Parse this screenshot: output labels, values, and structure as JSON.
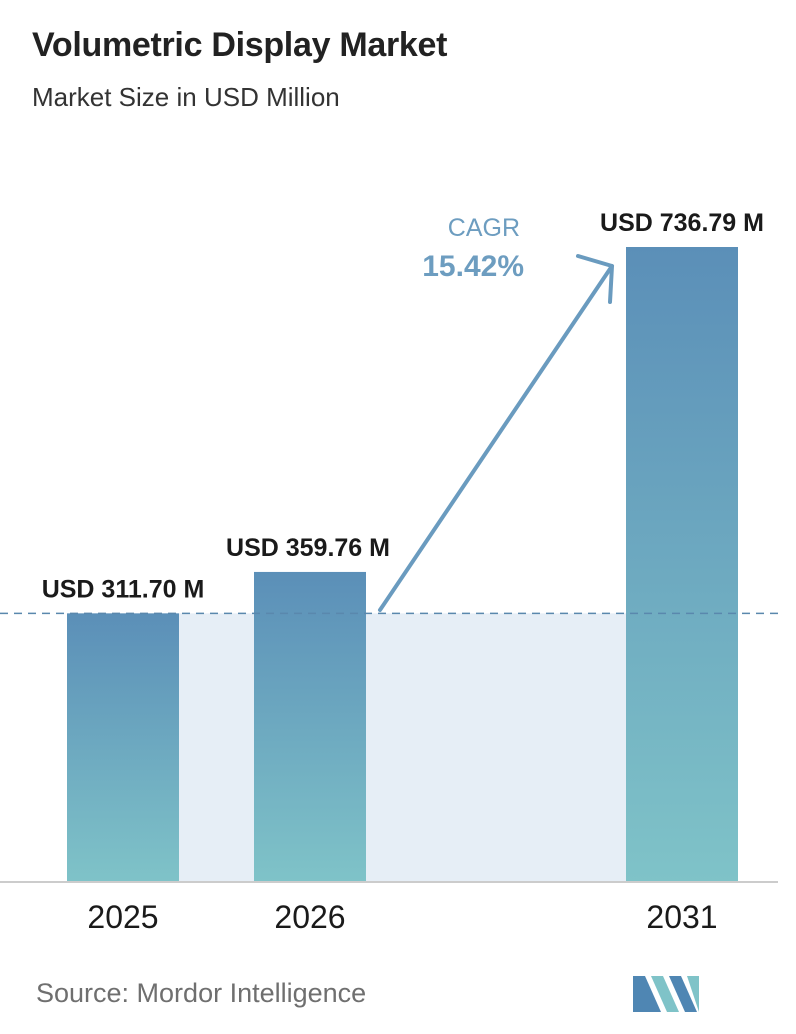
{
  "header": {
    "title": "Volumetric Display Market",
    "subtitle": "Market Size in USD Million"
  },
  "chart_data": {
    "type": "bar",
    "categories": [
      "2025",
      "2026",
      "2031"
    ],
    "values": [
      311.7,
      359.76,
      736.79
    ],
    "data_labels": [
      "USD 311.70 M",
      "USD 359.76 M",
      "USD 736.79 M"
    ],
    "ylim": [
      0,
      736.79
    ],
    "reference_line": {
      "value": 311.7,
      "style": "dashed"
    },
    "annotation": {
      "label": "CAGR",
      "value": "15.42%"
    },
    "grid": false,
    "legend": "none"
  },
  "footer": {
    "source": "Source:  Mordor Intelligence"
  },
  "colors": {
    "bar_top": "#5b8fb8",
    "bar_bottom": "#7fc3c8",
    "band": "#e6eef6",
    "dashed_line": "#5a88ad",
    "cagr": "#6d9dc0",
    "arrow": "#6a9bbf",
    "axis": "#cccccc"
  }
}
